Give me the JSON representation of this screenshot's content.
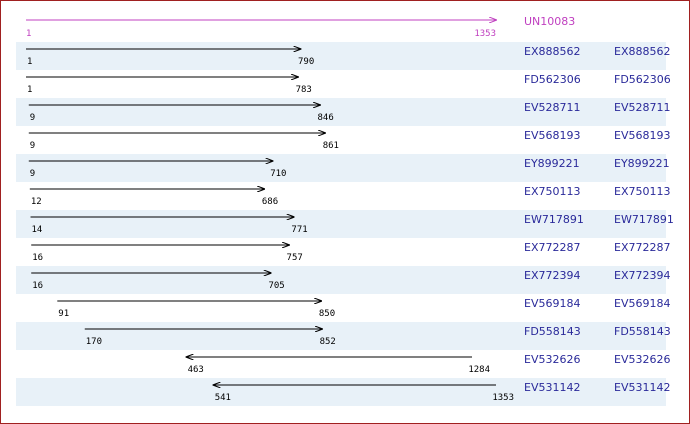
{
  "reference": {
    "name": "UN10083",
    "start": 1,
    "end": 1353
  },
  "rows": [
    {
      "name": "EX888562",
      "name2": "EX888562",
      "start": 1,
      "end": 790,
      "reverse": false
    },
    {
      "name": "FD562306",
      "name2": "FD562306",
      "start": 1,
      "end": 783,
      "reverse": false
    },
    {
      "name": "EV528711",
      "name2": "EV528711",
      "start": 9,
      "end": 846,
      "reverse": false
    },
    {
      "name": "EV568193",
      "name2": "EV568193",
      "start": 9,
      "end": 861,
      "reverse": false
    },
    {
      "name": "EY899221",
      "name2": "EY899221",
      "start": 9,
      "end": 710,
      "reverse": false
    },
    {
      "name": "EX750113",
      "name2": "EX750113",
      "start": 12,
      "end": 686,
      "reverse": false
    },
    {
      "name": "EW717891",
      "name2": "EW717891",
      "start": 14,
      "end": 771,
      "reverse": false
    },
    {
      "name": "EX772287",
      "name2": "EX772287",
      "start": 16,
      "end": 757,
      "reverse": false
    },
    {
      "name": "EX772394",
      "name2": "EX772394",
      "start": 16,
      "end": 705,
      "reverse": false
    },
    {
      "name": "EV569184",
      "name2": "EV569184",
      "start": 91,
      "end": 850,
      "reverse": false
    },
    {
      "name": "FD558143",
      "name2": "FD558143",
      "start": 170,
      "end": 852,
      "reverse": false
    },
    {
      "name": "EV532626",
      "name2": "EV532626",
      "start": 463,
      "end": 1284,
      "reverse": true
    },
    {
      "name": "EV531142",
      "name2": "EV531142",
      "start": 541,
      "end": 1353,
      "reverse": true
    }
  ]
}
